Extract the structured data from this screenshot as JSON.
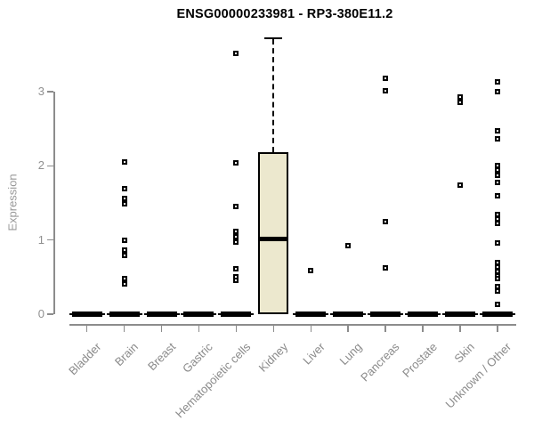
{
  "title": "ENSG00000233981 - RP3-380E11.2",
  "chart_data": {
    "type": "boxplot",
    "title": "ENSG00000233981 - RP3-380E11.2",
    "xlabel": "",
    "ylabel": "Expression",
    "yticks": [
      0,
      1,
      2,
      3
    ],
    "ylim": [
      0,
      3.9
    ],
    "grid": false,
    "legend": null,
    "categories": [
      "Bladder",
      "Brain",
      "Breast",
      "Gastric",
      "Hematopoietic cells",
      "Kidney",
      "Liver",
      "Lung",
      "Pancreas",
      "Prostate",
      "Skin",
      "Unknown / Other"
    ],
    "boxes": [
      {
        "category": "Bladder",
        "q1": 0,
        "median": 0,
        "q3": 0,
        "whisker_low": 0,
        "whisker_high": 0,
        "outliers": []
      },
      {
        "category": "Brain",
        "q1": 0,
        "median": 0,
        "q3": 0,
        "whisker_low": 0,
        "whisker_high": 0,
        "outliers": [
          2.05,
          1.69,
          1.56,
          1.49,
          1.0,
          0.86,
          0.79,
          0.48,
          0.41
        ]
      },
      {
        "category": "Breast",
        "q1": 0,
        "median": 0,
        "q3": 0,
        "whisker_low": 0,
        "whisker_high": 0,
        "outliers": []
      },
      {
        "category": "Gastric",
        "q1": 0,
        "median": 0,
        "q3": 0,
        "whisker_low": 0,
        "whisker_high": 0,
        "outliers": []
      },
      {
        "category": "Hematopoietic cells",
        "q1": 0,
        "median": 0,
        "q3": 0,
        "whisker_low": 0,
        "whisker_high": 0,
        "outliers": [
          3.52,
          2.04,
          1.45,
          1.12,
          1.04,
          0.97,
          0.61,
          0.5,
          0.46
        ]
      },
      {
        "category": "Kidney",
        "q1": 0,
        "median": 1.01,
        "q3": 2.18,
        "whisker_low": 0,
        "whisker_high": 3.72,
        "outliers": []
      },
      {
        "category": "Liver",
        "q1": 0,
        "median": 0,
        "q3": 0,
        "whisker_low": 0,
        "whisker_high": 0,
        "outliers": [
          0.59
        ]
      },
      {
        "category": "Lung",
        "q1": 0,
        "median": 0,
        "q3": 0,
        "whisker_low": 0,
        "whisker_high": 0,
        "outliers": [
          0.92
        ]
      },
      {
        "category": "Pancreas",
        "q1": 0,
        "median": 0,
        "q3": 0,
        "whisker_low": 0,
        "whisker_high": 0,
        "outliers": [
          3.18,
          3.01,
          1.25,
          0.62
        ]
      },
      {
        "category": "Prostate",
        "q1": 0,
        "median": 0,
        "q3": 0,
        "whisker_low": 0,
        "whisker_high": 0,
        "outliers": []
      },
      {
        "category": "Skin",
        "q1": 0,
        "median": 0,
        "q3": 0,
        "whisker_low": 0,
        "whisker_high": 0,
        "outliers": [
          2.93,
          2.86,
          1.74
        ]
      },
      {
        "category": "Unknown / Other",
        "q1": 0,
        "median": 0,
        "q3": 0,
        "whisker_low": 0,
        "whisker_high": 0,
        "outliers": [
          3.13,
          3.0,
          2.47,
          2.36,
          2.0,
          1.95,
          1.87,
          1.78,
          1.6,
          1.34,
          1.28,
          1.23,
          0.96,
          0.7,
          0.64,
          0.58,
          0.52,
          0.48,
          0.37,
          0.31,
          0.13
        ]
      }
    ],
    "colors": {
      "box_fill": "#ECE8CE",
      "box_border": "#000000",
      "median": "#000000",
      "outlier": "#000000",
      "axis": "#8C8C8C",
      "tick_label": "#909090",
      "title": "#000000",
      "background": "#FFFFFF"
    }
  }
}
